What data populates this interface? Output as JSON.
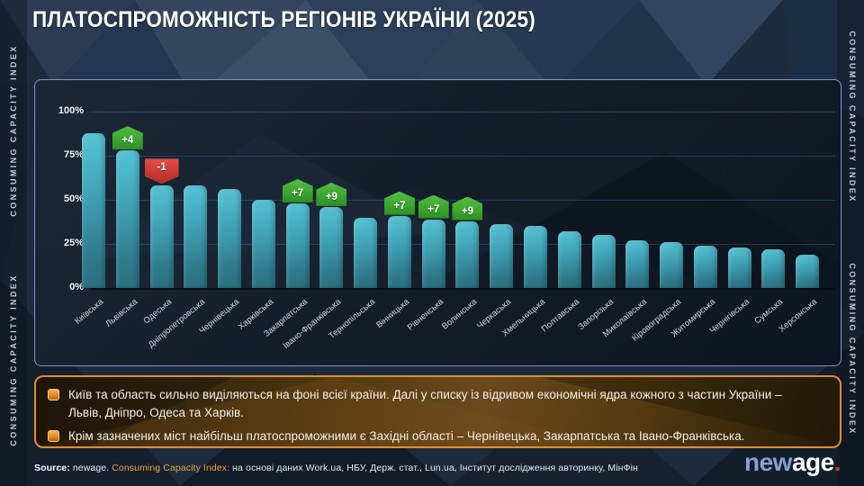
{
  "page": {
    "title": "ПЛАТОСПРОМОЖНІСТЬ РЕГІОНІВ УКРАЇНИ (2025)",
    "side_text": "CONSUMING CAPACITY INDEX"
  },
  "chart_data": {
    "type": "bar",
    "title": "Платоспроможність регіонів України (2025)",
    "xlabel": "",
    "ylabel": "",
    "ylim": [
      0,
      100
    ],
    "grid": true,
    "yticks": [
      "100%",
      "75%",
      "50%",
      "25%",
      "0%"
    ],
    "categories": [
      "Київська",
      "Львівська",
      "Одеська",
      "Дніпропетровська",
      "Чернівецька",
      "Харківська",
      "Закарпатська",
      "Івано-Франківська",
      "Тернопільська",
      "Вінницька",
      "Рівненська",
      "Волинська",
      "Черкаська",
      "Хмельницька",
      "Полтавська",
      "Запорізька",
      "Миколаївська",
      "Кіровоградська",
      "Житомирська",
      "Чернігівська",
      "Сумська",
      "Херсонська"
    ],
    "values": [
      88,
      78,
      58,
      58,
      56,
      50,
      48,
      46,
      40,
      41,
      39,
      38,
      36,
      35,
      32,
      30,
      27,
      26,
      24,
      23,
      22,
      19
    ],
    "badges": [
      {
        "index": 1,
        "text": "+4",
        "direction": "up"
      },
      {
        "index": 2,
        "text": "-1",
        "direction": "down"
      },
      {
        "index": 6,
        "text": "+7",
        "direction": "up"
      },
      {
        "index": 7,
        "text": "+9",
        "direction": "up"
      },
      {
        "index": 9,
        "text": "+7",
        "direction": "up"
      },
      {
        "index": 10,
        "text": "+7",
        "direction": "up"
      },
      {
        "index": 11,
        "text": "+9",
        "direction": "up"
      }
    ],
    "bar_color": "#4ab5c8",
    "badge_up_color": "#3ba630",
    "badge_down_color": "#cb3a33"
  },
  "notes": {
    "items": [
      {
        "text": "Київ та область сильно виділяються на фоні всієї країни. Далі у списку із відривом економічні ядра кожного з частин України – Львів, Дніпро, Одеса та Харків."
      },
      {
        "text": "Крім зазначених міст найбільш платоспроможними є Західні області – Чернівецька, Закарпатська та Івано-Франківська."
      }
    ],
    "accent_color": "#e08e2d"
  },
  "footer": {
    "source_label": "Source:",
    "source_brand": " newage. ",
    "source_index": "Consuming Capacity Index:",
    "source_rest": " на основі даних Work.ua, НБУ, Держ. стат., Lun.ua, Інститут дослідження авторинку, МінФін",
    "logo_new": "new",
    "logo_age": "age",
    "logo_dot": "."
  }
}
